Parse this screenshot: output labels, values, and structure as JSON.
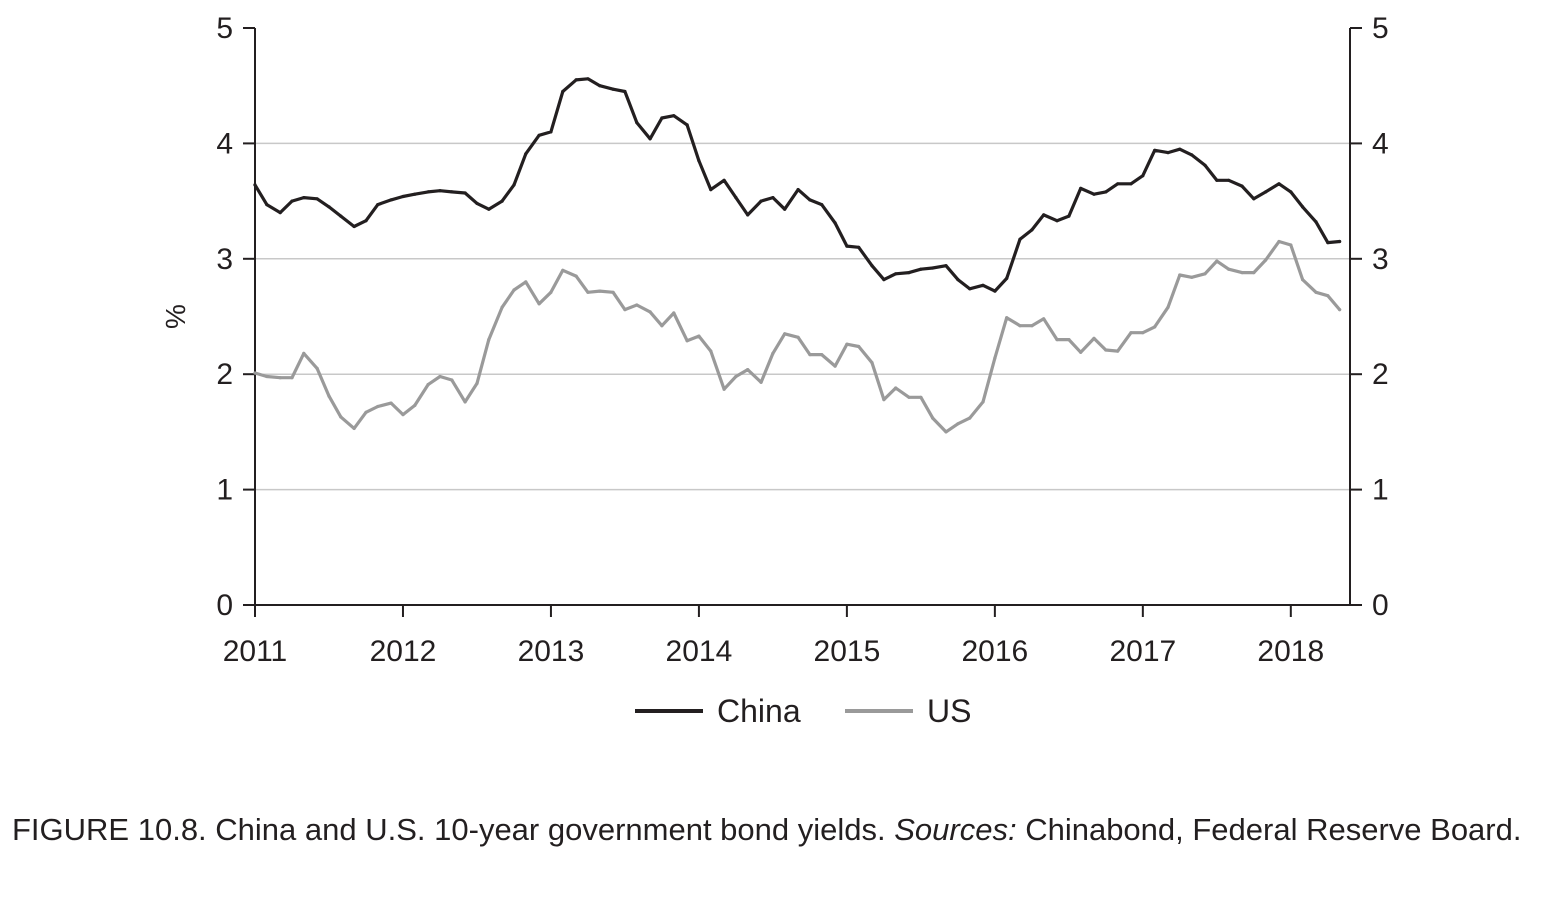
{
  "chart_data": {
    "type": "line",
    "ylabel": "%",
    "ylim": [
      0,
      5
    ],
    "yticks": [
      "0",
      "1",
      "2",
      "3",
      "4",
      "5"
    ],
    "xlim": [
      2011,
      2018.4
    ],
    "xticks": [
      "2011",
      "2012",
      "2013",
      "2014",
      "2015",
      "2016",
      "2017",
      "2018"
    ],
    "grid": "horizontal",
    "legend_position": "bottom-center",
    "dual_y_axis": true,
    "series": [
      {
        "name": "China",
        "color": "#231f20",
        "x": [
          2011.0,
          2011.08,
          2011.17,
          2011.25,
          2011.33,
          2011.42,
          2011.5,
          2011.58,
          2011.67,
          2011.75,
          2011.83,
          2011.92,
          2012.0,
          2012.08,
          2012.17,
          2012.25,
          2012.33,
          2012.42,
          2012.5,
          2012.58,
          2012.67,
          2012.75,
          2012.83,
          2012.92,
          2013.0,
          2013.08,
          2013.17,
          2013.25,
          2013.33,
          2013.42,
          2013.5,
          2013.58,
          2013.67,
          2013.75,
          2013.83,
          2013.92,
          2014.0,
          2014.08,
          2014.17,
          2014.25,
          2014.33,
          2014.42,
          2014.5,
          2014.58,
          2014.67,
          2014.75,
          2014.83,
          2014.92,
          2015.0,
          2015.08,
          2015.17,
          2015.25,
          2015.33,
          2015.42,
          2015.5,
          2015.58,
          2015.67,
          2015.75,
          2015.83,
          2015.92,
          2016.0,
          2016.08,
          2016.17,
          2016.25,
          2016.33,
          2016.42,
          2016.5,
          2016.58,
          2016.67,
          2016.75,
          2016.83,
          2016.92,
          2017.0,
          2017.08,
          2017.17,
          2017.25,
          2017.33,
          2017.42,
          2017.5,
          2017.58,
          2017.67,
          2017.75,
          2017.83,
          2017.92,
          2018.0,
          2018.08,
          2018.17,
          2018.25,
          2018.33
        ],
        "values": [
          3.64,
          3.47,
          3.4,
          3.5,
          3.53,
          3.52,
          3.45,
          3.37,
          3.28,
          3.33,
          3.47,
          3.51,
          3.54,
          3.56,
          3.58,
          3.59,
          3.58,
          3.57,
          3.48,
          3.43,
          3.5,
          3.64,
          3.91,
          4.07,
          4.1,
          4.45,
          4.55,
          4.56,
          4.5,
          4.47,
          4.45,
          4.18,
          4.04,
          4.22,
          4.24,
          4.16,
          3.85,
          3.6,
          3.68,
          3.53,
          3.38,
          3.5,
          3.53,
          3.43,
          3.6,
          3.51,
          3.47,
          3.31,
          3.11,
          3.1,
          2.94,
          2.82,
          2.87,
          2.88,
          2.91,
          2.92,
          2.94,
          2.82,
          2.74,
          2.77,
          2.72,
          2.83,
          3.17,
          3.25,
          3.38,
          3.33,
          3.37,
          3.61,
          3.56,
          3.58,
          3.65,
          3.65,
          3.72,
          3.94,
          3.92,
          3.95,
          3.9,
          3.81,
          3.68,
          3.68,
          3.63,
          3.52,
          3.58,
          3.65,
          3.58,
          3.45,
          3.32,
          3.14,
          3.15
        ]
      },
      {
        "name": "US",
        "color": "#9a9a9a",
        "x": [
          2011.0,
          2011.08,
          2011.17,
          2011.25,
          2011.33,
          2011.42,
          2011.5,
          2011.58,
          2011.67,
          2011.75,
          2011.83,
          2011.92,
          2012.0,
          2012.08,
          2012.17,
          2012.25,
          2012.33,
          2012.42,
          2012.5,
          2012.58,
          2012.67,
          2012.75,
          2012.83,
          2012.92,
          2013.0,
          2013.08,
          2013.17,
          2013.25,
          2013.33,
          2013.42,
          2013.5,
          2013.58,
          2013.67,
          2013.75,
          2013.83,
          2013.92,
          2014.0,
          2014.08,
          2014.17,
          2014.25,
          2014.33,
          2014.42,
          2014.5,
          2014.58,
          2014.67,
          2014.75,
          2014.83,
          2014.92,
          2015.0,
          2015.08,
          2015.17,
          2015.25,
          2015.33,
          2015.42,
          2015.5,
          2015.58,
          2015.67,
          2015.75,
          2015.83,
          2015.92,
          2016.0,
          2016.08,
          2016.17,
          2016.25,
          2016.33,
          2016.42,
          2016.5,
          2016.58,
          2016.67,
          2016.75,
          2016.83,
          2016.92,
          2017.0,
          2017.08,
          2017.17,
          2017.25,
          2017.33,
          2017.42,
          2017.5,
          2017.58,
          2017.67,
          2017.75,
          2017.83,
          2017.92,
          2018.0,
          2018.08,
          2018.17,
          2018.25,
          2018.33
        ],
        "values": [
          2.01,
          1.98,
          1.97,
          1.97,
          2.18,
          2.05,
          1.81,
          1.63,
          1.53,
          1.67,
          1.72,
          1.75,
          1.65,
          1.73,
          1.91,
          1.98,
          1.95,
          1.76,
          1.92,
          2.3,
          2.58,
          2.73,
          2.8,
          2.61,
          2.71,
          2.9,
          2.85,
          2.71,
          2.72,
          2.71,
          2.56,
          2.6,
          2.54,
          2.42,
          2.53,
          2.29,
          2.33,
          2.2,
          1.87,
          1.98,
          2.04,
          1.93,
          2.18,
          2.35,
          2.32,
          2.17,
          2.17,
          2.07,
          2.26,
          2.24,
          2.1,
          1.78,
          1.88,
          1.8,
          1.8,
          1.62,
          1.5,
          1.57,
          1.62,
          1.76,
          2.14,
          2.49,
          2.42,
          2.42,
          2.48,
          2.3,
          2.3,
          2.19,
          2.31,
          2.21,
          2.2,
          2.36,
          2.36,
          2.41,
          2.58,
          2.86,
          2.84,
          2.87,
          2.98,
          2.91,
          2.88,
          2.88,
          2.99,
          3.15,
          3.12,
          2.82,
          2.71,
          2.68,
          2.56
        ]
      }
    ]
  },
  "caption": {
    "prefix": "FIGURE 10.8. China and U.S. 10-year government bond yields. ",
    "sources_label": "Sources:",
    "sources_text": " Chinabond, Federal Reserve Board."
  }
}
